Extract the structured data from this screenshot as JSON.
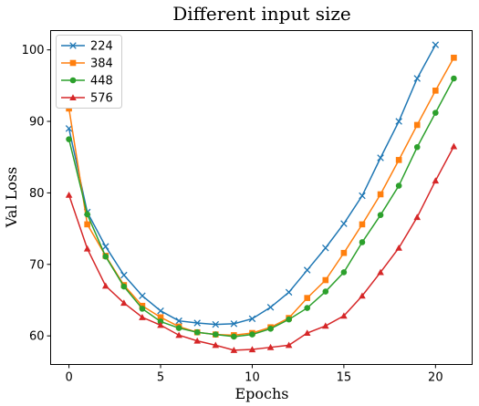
{
  "chart_data": {
    "type": "line",
    "title": "Different input size",
    "xlabel": "Epochs",
    "ylabel": "Val Loss",
    "xlim": [
      -1,
      22
    ],
    "ylim": [
      56,
      102.7
    ],
    "xticks": [
      0,
      5,
      10,
      15,
      20
    ],
    "yticks": [
      60,
      70,
      80,
      90,
      100
    ],
    "grid": false,
    "legend_position": "top-left",
    "x": [
      0,
      1,
      2,
      3,
      4,
      5,
      6,
      7,
      8,
      9,
      10,
      11,
      12,
      13,
      14,
      15,
      16,
      17,
      18,
      19,
      20,
      21
    ],
    "series": [
      {
        "name": "224",
        "color": "#1f77b4",
        "marker": "x",
        "values": [
          89.0,
          77.3,
          72.5,
          68.5,
          65.6,
          63.5,
          62.1,
          61.8,
          61.6,
          61.7,
          62.4,
          64.0,
          66.1,
          69.2,
          72.3,
          75.7,
          79.6,
          84.9,
          90.0,
          96.0,
          100.7,
          null
        ]
      },
      {
        "name": "384",
        "color": "#ff7f0e",
        "marker": "square",
        "values": [
          91.8,
          75.6,
          71.2,
          67.1,
          64.2,
          62.6,
          61.3,
          60.5,
          60.2,
          60.1,
          60.4,
          61.2,
          62.5,
          65.3,
          67.8,
          71.6,
          75.6,
          79.8,
          84.6,
          89.5,
          94.3,
          98.9
        ]
      },
      {
        "name": "448",
        "color": "#2ca02c",
        "marker": "circle",
        "values": [
          87.5,
          77.0,
          71.1,
          66.9,
          63.8,
          62.0,
          61.1,
          60.5,
          60.2,
          59.9,
          60.2,
          61.0,
          62.3,
          63.9,
          66.2,
          68.9,
          73.1,
          76.9,
          81.0,
          86.4,
          91.2,
          96.0
        ]
      },
      {
        "name": "576",
        "color": "#d62728",
        "marker": "triangle",
        "values": [
          79.7,
          72.2,
          67.0,
          64.6,
          62.6,
          61.5,
          60.1,
          59.3,
          58.7,
          58.0,
          58.1,
          58.4,
          58.7,
          60.4,
          61.4,
          62.8,
          65.6,
          68.9,
          72.3,
          76.6,
          81.7,
          86.5
        ]
      }
    ]
  }
}
